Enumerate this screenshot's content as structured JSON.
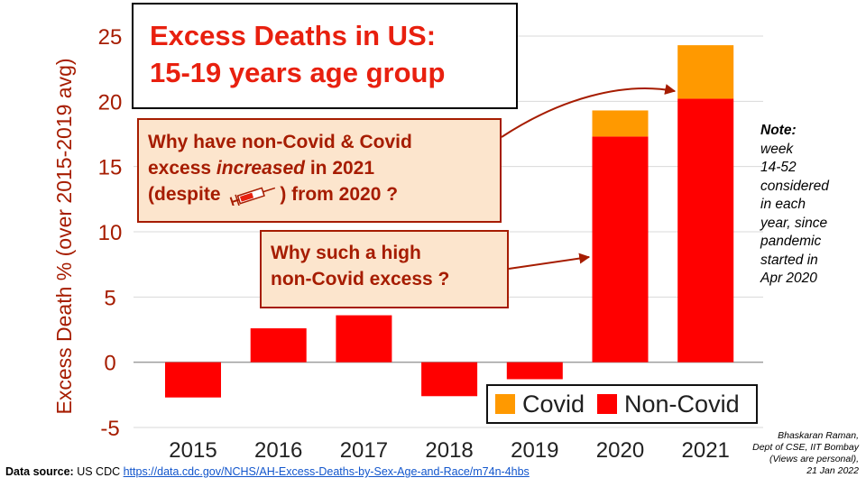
{
  "title": {
    "line1": "Excess Deaths in US:",
    "line2": "15-19 years age group"
  },
  "questions": {
    "q1_line1": "Why have non-Covid & Covid",
    "q1_line2a": "excess ",
    "q1_line2b": "increased",
    "q1_line2c": " in 2021",
    "q1_line3a": "(despite ",
    "q1_line3b": ") from 2020 ?",
    "q2_line1": "Why such a high",
    "q2_line2": "non-Covid excess ?"
  },
  "note": {
    "title": "Note:",
    "lines": [
      "week",
      "14-52",
      "considered",
      "in each",
      "year, since",
      "pandemic",
      "started in",
      "Apr 2020"
    ]
  },
  "credit": {
    "lines": [
      "Bhaskaran Raman,",
      "Dept of CSE, IIT Bombay",
      "(Views are personal),",
      "21 Jan 2022"
    ]
  },
  "source": {
    "label": "Data source:",
    "org": " US CDC ",
    "link": "https://data.cdc.gov/NCHS/AH-Excess-Deaths-by-Sex-Age-and-Race/m74n-4hbs"
  },
  "legend": {
    "covid": "Covid",
    "noncovid": "Non-Covid"
  },
  "colors": {
    "covid": "#ff9900",
    "noncovid": "#ff0000",
    "axis_text": "#a61c00",
    "title": "#e8200f",
    "question_bg": "#fce5cd"
  },
  "chart_data": {
    "type": "bar",
    "stacked": true,
    "categories": [
      "2015",
      "2016",
      "2017",
      "2018",
      "2019",
      "2020",
      "2021"
    ],
    "series": [
      {
        "name": "Non-Covid",
        "values": [
          -2.7,
          2.6,
          3.6,
          -2.6,
          -1.3,
          17.3,
          20.2
        ]
      },
      {
        "name": "Covid",
        "values": [
          0,
          0,
          0,
          0,
          0,
          2.0,
          4.1
        ]
      }
    ],
    "ylabel": "Excess Death % (over 2015-2019 avg)",
    "yticks": [
      25,
      20,
      15,
      10,
      5,
      0,
      -5
    ],
    "ylim": [
      -5,
      25
    ],
    "grid": true,
    "legend_position": "bottom-right"
  }
}
